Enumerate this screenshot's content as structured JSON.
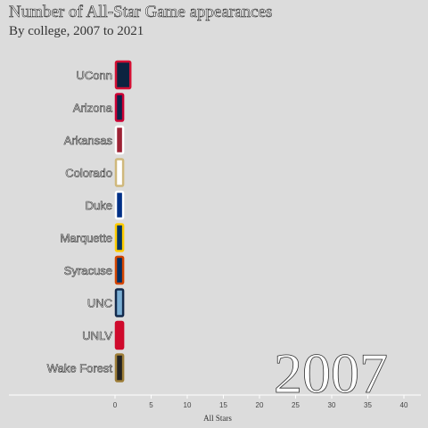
{
  "title": "Number of All-Star Game appearances",
  "subtitle": "By college, 2007 to 2021",
  "year": "2007",
  "chart_data": {
    "type": "bar",
    "orientation": "horizontal",
    "categories": [
      "UConn",
      "Arizona",
      "Arkansas",
      "Colorado",
      "Duke",
      "Marquette",
      "Syracuse",
      "UNC",
      "UNLV",
      "Wake Forest"
    ],
    "values": [
      2,
      1,
      1,
      1,
      1,
      1,
      1,
      1,
      1,
      1
    ],
    "fill_colors": [
      "#0c2340",
      "#0c234b",
      "#9d2235",
      "#ffffff",
      "#003087",
      "#003366",
      "#002d62",
      "#7bafd4",
      "#cf0a2c",
      "#222222"
    ],
    "border_colors": [
      "#d21034",
      "#cc0033",
      "#ffffff",
      "#cfb87c",
      "#ffffff",
      "#ffcc00",
      "#d44500",
      "#13294b",
      "#cf0a2c",
      "#9e7e38"
    ],
    "xlabel": "All Stars",
    "xlim": [
      -15,
      42
    ],
    "xticks": [
      "0",
      "5",
      "10",
      "15",
      "20",
      "25",
      "30",
      "35",
      "40"
    ],
    "grid": false
  }
}
